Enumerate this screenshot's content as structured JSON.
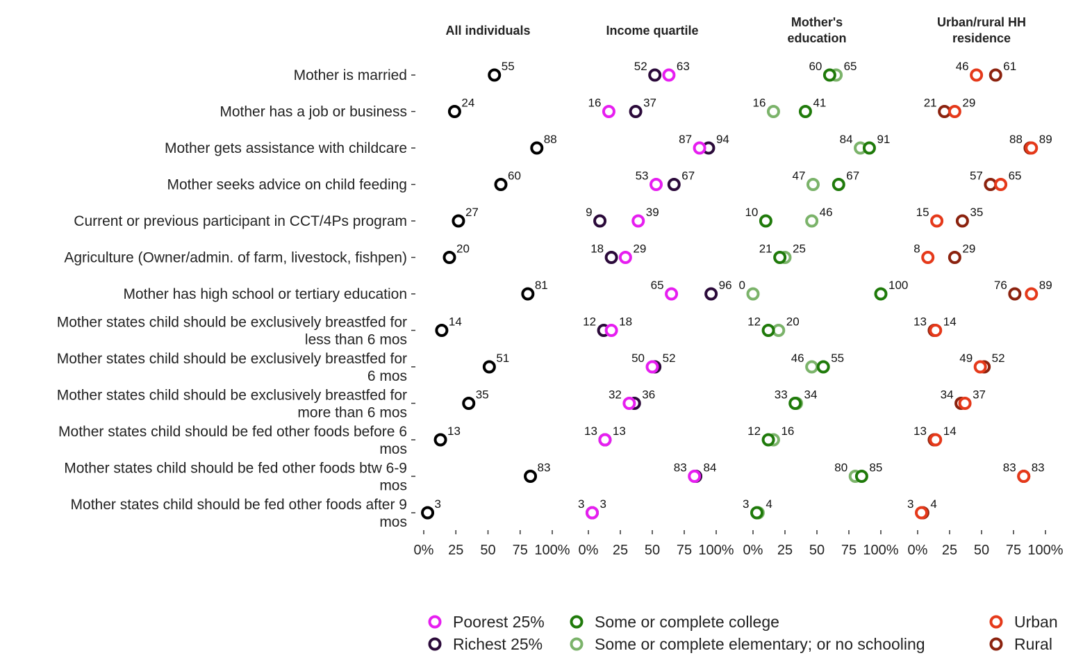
{
  "chart_data": {
    "type": "scatter",
    "colors": {
      "all": "#000000",
      "poorest": "#E61EF0",
      "richest": "#2B0A3A",
      "college": "#1F7A0A",
      "elementary": "#7BB36A",
      "urban": "#E5391A",
      "rural": "#8B220E"
    },
    "rows": [
      "Mother is married",
      "Mother has a job or business",
      "Mother gets assistance with childcare",
      "Mother seeks advice on child feeding",
      "Current or previous participant in CCT/4Ps program",
      "Agriculture (Owner/admin. of farm, livestock, fishpen)",
      "Mother has high school or tertiary education",
      "Mother states child should be exclusively breastfed for|less than 6 mos",
      "Mother states child should be exclusively breastfed for|6 mos",
      "Mother states child should be exclusively breastfed for|more than 6 mos",
      "Mother states child should be fed other foods before 6|mos",
      "Mother states child should be fed other foods btw 6-9|mos",
      "Mother states child should be fed other foods after 9|mos"
    ],
    "x_ticks": [
      "0%",
      "25",
      "50",
      "75",
      "100%"
    ],
    "xlim": [
      0,
      100
    ],
    "facets": [
      {
        "title": "All individuals",
        "series": [
          {
            "key": "all",
            "values": [
              55,
              24,
              88,
              60,
              27,
              20,
              81,
              14,
              51,
              35,
              13,
              83,
              3
            ]
          }
        ]
      },
      {
        "title": "Income quartile",
        "series": [
          {
            "key": "poorest",
            "name": "Poorest 25%",
            "values": [
              63,
              16,
              87,
              53,
              39,
              29,
              65,
              18,
              50,
              32,
              13,
              83,
              3
            ]
          },
          {
            "key": "richest",
            "name": "Richest 25%",
            "values": [
              52,
              37,
              94,
              67,
              9,
              18,
              96,
              12,
              52,
              36,
              13,
              84,
              3
            ]
          }
        ]
      },
      {
        "title": "Mother's|education",
        "series": [
          {
            "key": "college",
            "name": "Some or complete college",
            "values": [
              60,
              41,
              91,
              67,
              10,
              21,
              100,
              12,
              55,
              33,
              12,
              85,
              3
            ]
          },
          {
            "key": "elementary",
            "name": "Some or complete elementary; or no schooling",
            "values": [
              65,
              16,
              84,
              47,
              46,
              25,
              0,
              20,
              46,
              34,
              16,
              80,
              4
            ]
          }
        ]
      },
      {
        "title": "Urban/rural HH|residence",
        "series": [
          {
            "key": "urban",
            "name": "Urban",
            "values": [
              46,
              29,
              89,
              65,
              15,
              8,
              89,
              14,
              49,
              37,
              14,
              83,
              3
            ]
          },
          {
            "key": "rural",
            "name": "Rural",
            "values": [
              61,
              21,
              88,
              57,
              35,
              29,
              76,
              13,
              52,
              34,
              13,
              83,
              4
            ]
          }
        ]
      }
    ],
    "legend_placement": "bottom",
    "grid": false
  }
}
